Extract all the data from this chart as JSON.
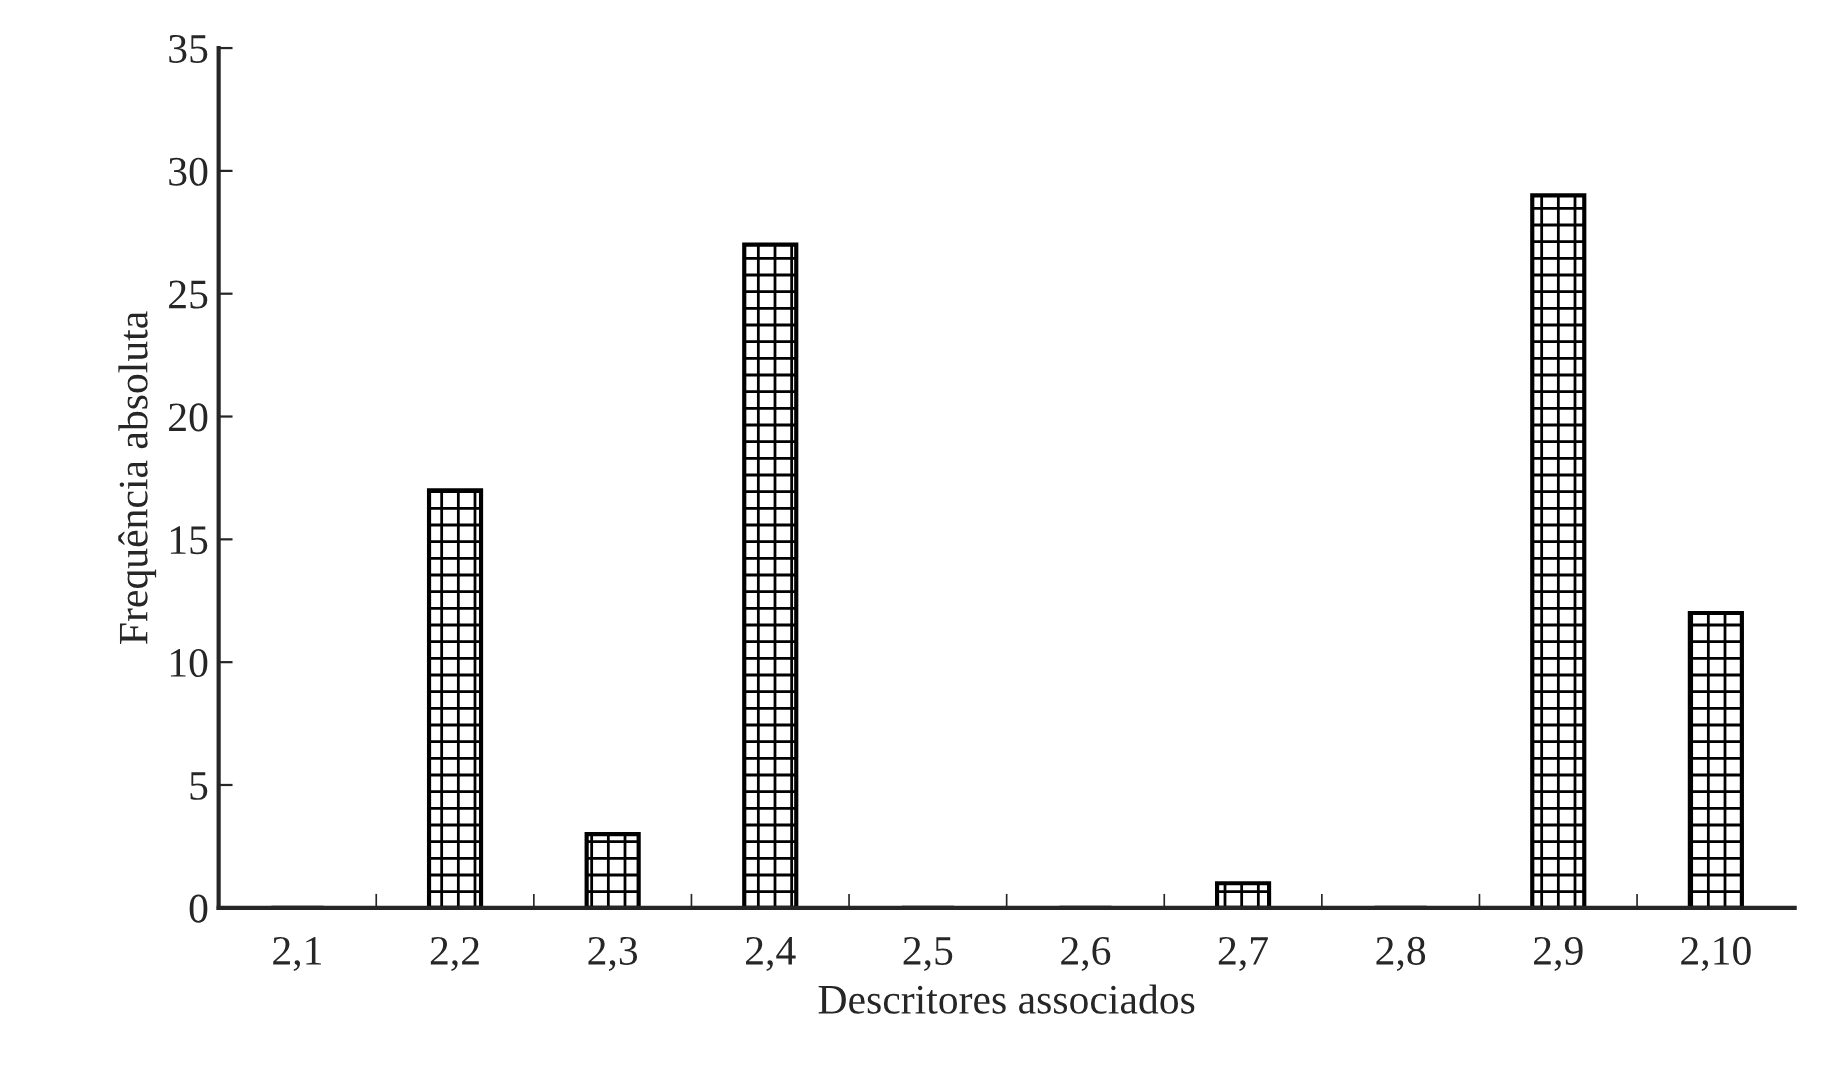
{
  "chart_data": {
    "type": "bar",
    "xlabel": "Descritores associados",
    "ylabel": "Frequência absoluta",
    "categories": [
      "2,1",
      "2,2",
      "2,3",
      "2,4",
      "2,5",
      "2,6",
      "2,7",
      "2,8",
      "2,9",
      "2,10"
    ],
    "values": [
      0,
      17,
      3,
      27,
      0,
      0,
      1,
      0,
      29,
      12
    ],
    "color": "#000000",
    "ylim": [
      0,
      35
    ],
    "yticks": [
      0,
      5,
      10,
      15,
      20,
      25,
      30,
      35
    ],
    "grid": false
  }
}
